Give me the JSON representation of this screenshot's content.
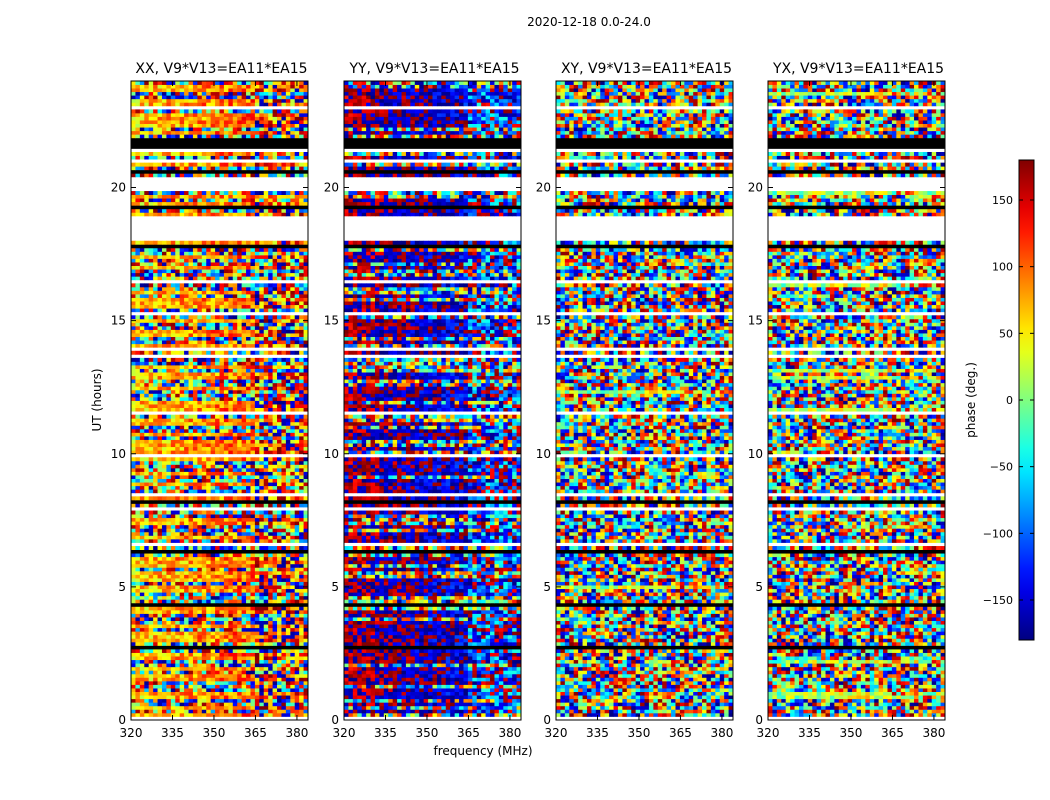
{
  "chart_data": {
    "type": "heatmap",
    "suptitle": "2020-12-18 0.0-24.0",
    "xlabel": "frequency (MHz)",
    "ylabel": "UT (hours)",
    "xlim": [
      320,
      384
    ],
    "ylim": [
      0,
      24
    ],
    "xticks": [
      320,
      335,
      350,
      365,
      380
    ],
    "yticks": [
      0,
      5,
      10,
      15,
      20
    ],
    "colorbar": {
      "label": "phase (deg.)",
      "range": [
        -180,
        180
      ],
      "ticks": [
        150,
        100,
        50,
        0,
        -50,
        -100,
        -150
      ],
      "tick_labels": [
        "150",
        "100",
        "50",
        "0",
        "−50",
        "−100",
        "−150"
      ],
      "colormap": "jet"
    },
    "panels": [
      {
        "title": "XX, V9*V13=EA11*EA15",
        "phase_offset": 60,
        "coherence": 0.55
      },
      {
        "title": "YY, V9*V13=EA11*EA15",
        "phase_offset": 170,
        "coherence": 0.65
      },
      {
        "title": "XY, V9*V13=EA11*EA15",
        "phase_offset": 0,
        "coherence": 0.02
      },
      {
        "title": "YX, V9*V13=EA11*EA15",
        "phase_offset": 0,
        "coherence": 0.02
      }
    ],
    "data_gaps_hours": [
      [
        18.05,
        18.95
      ],
      [
        19.9,
        20.45
      ],
      [
        0,
        0.1
      ]
    ]
  }
}
